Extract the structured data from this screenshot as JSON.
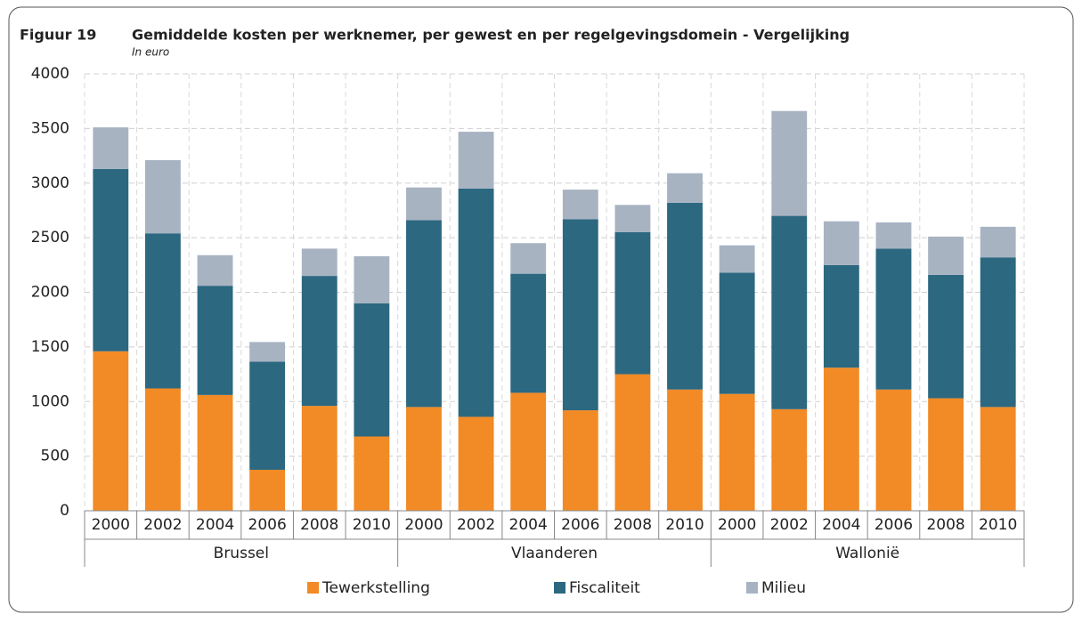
{
  "chart_data": {
    "type": "stacked_bar",
    "figure_label": "Figuur 19",
    "title": "Gemiddelde kosten per werknemer, per gewest en per regelgevingsdomein - Vergelijking",
    "subtitle": "In euro",
    "categories": [
      "2000",
      "2002",
      "2004",
      "2006",
      "2008",
      "2010",
      "2000",
      "2002",
      "2004",
      "2006",
      "2008",
      "2010",
      "2000",
      "2002",
      "2004",
      "2006",
      "2008",
      "2010"
    ],
    "groups": [
      "Brussel",
      "Vlaanderen",
      "Wallonië"
    ],
    "series": [
      {
        "name": "Tewerkstelling",
        "color": "#f28a25",
        "values": [
          1460,
          1120,
          1060,
          375,
          960,
          680,
          950,
          860,
          1080,
          920,
          1250,
          1110,
          1070,
          930,
          1310,
          1110,
          1030,
          950
        ]
      },
      {
        "name": "Fiscaliteit",
        "color": "#2c6880",
        "values": [
          1670,
          1420,
          1000,
          990,
          1190,
          1220,
          1710,
          2090,
          1090,
          1750,
          1300,
          1710,
          1110,
          1770,
          940,
          1290,
          1130,
          1370
        ]
      },
      {
        "name": "Milieu",
        "color": "#a8b3c2",
        "values": [
          380,
          670,
          280,
          180,
          250,
          430,
          300,
          520,
          280,
          270,
          250,
          270,
          250,
          960,
          400,
          240,
          350,
          280
        ]
      }
    ],
    "ylim": [
      0,
      4000
    ],
    "yticks": [
      0,
      500,
      1000,
      1500,
      2000,
      2500,
      3000,
      3500,
      4000
    ],
    "grid": true,
    "legend": "bottom"
  }
}
